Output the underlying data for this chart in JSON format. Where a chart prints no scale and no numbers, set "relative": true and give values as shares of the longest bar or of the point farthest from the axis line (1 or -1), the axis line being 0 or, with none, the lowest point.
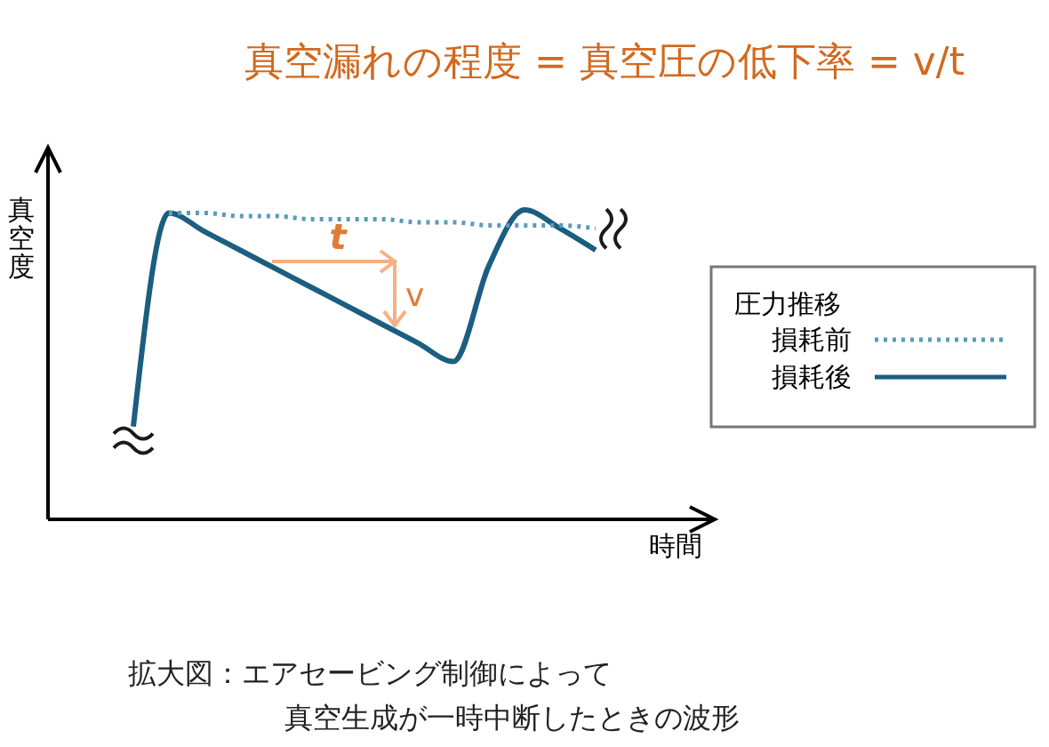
{
  "chart_data": {
    "type": "line",
    "relative": true,
    "title": "真空漏れの程度 = 真空圧の低下率 = v/t",
    "xlabel": "時間",
    "ylabel": "真空度",
    "legend_title": "圧力推移",
    "legend": "right",
    "marker": "none",
    "categories": [
      null,
      null,
      null,
      null,
      null,
      null,
      null,
      null,
      null,
      null,
      null,
      null,
      null,
      null,
      null,
      null,
      null,
      null
    ],
    "series": [
      {
        "name": "損耗前",
        "color": "#5b9bbd",
        "line_style": "dotted",
        "values": [
          null,
          null,
          null,
          0.99,
          0.99,
          0.98,
          0.98,
          0.97,
          0.97,
          0.97,
          0.96,
          0.96,
          0.95,
          0.95,
          0.95,
          0.94,
          null,
          null
        ]
      },
      {
        "name": "損耗後",
        "color": "#1b5e80",
        "line_style": "solid",
        "values": [
          null,
          null,
          0.3,
          0.99,
          0.93,
          0.87,
          0.81,
          0.75,
          0.69,
          0.63,
          0.57,
          0.51,
          0.82,
          1.0,
          0.94,
          0.87,
          null,
          null
        ]
      }
    ],
    "annotations": [
      "t",
      "v",
      "拡大図：エアセービング制御によって",
      "真空生成が一時中断したときの波形"
    ]
  }
}
